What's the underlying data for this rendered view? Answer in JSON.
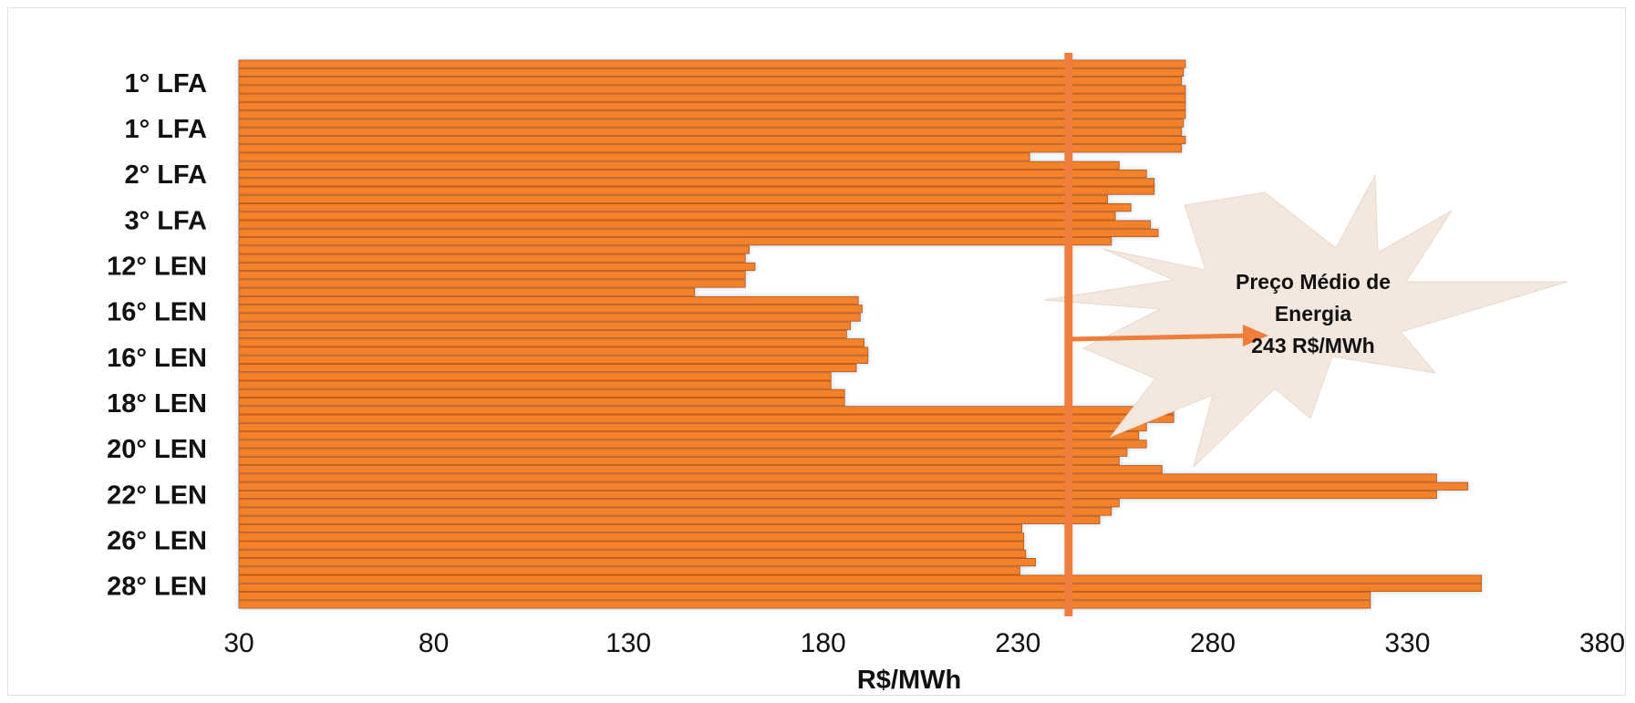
{
  "chart_data": {
    "type": "bar",
    "orientation": "horizontal",
    "xlabel": "R$/MWh",
    "xlim": [
      30,
      380
    ],
    "xticks": [
      30,
      80,
      130,
      180,
      230,
      280,
      330,
      380
    ],
    "category_labels": [
      "1° LFA",
      "1° LFA",
      "2° LFA",
      "3° LFA",
      "12° LEN",
      "16° LEN",
      "16° LEN",
      "18° LEN",
      "20° LEN",
      "22° LEN",
      "26° LEN",
      "28° LEN"
    ],
    "values": [
      273,
      272.5,
      272,
      273,
      273,
      273,
      273,
      272.5,
      272,
      273,
      272,
      233,
      256,
      263,
      265,
      265,
      253,
      259,
      255,
      264,
      266,
      254,
      161,
      160,
      162.5,
      160,
      160,
      147,
      189,
      190,
      189.5,
      187,
      186,
      190.5,
      191.5,
      191.5,
      188.5,
      182,
      182,
      185.5,
      185.5,
      270,
      270,
      263,
      261,
      263,
      258,
      256,
      267,
      337.5,
      345.5,
      337.5,
      256,
      254,
      251,
      231,
      231.5,
      231.5,
      232,
      234.5,
      230.5,
      349,
      349,
      320.5,
      320.5
    ],
    "colors": {
      "bar": "#f4822a",
      "bar_edge": "#b85a14",
      "glow": "#bcd8f3",
      "reference_line": "#ef7d3c",
      "burst": "#f4e8de"
    },
    "reference": {
      "value": 243,
      "text_lines": [
        "Preço Médio de",
        "Energia",
        "243 R$/MWh"
      ]
    },
    "grid": false
  }
}
